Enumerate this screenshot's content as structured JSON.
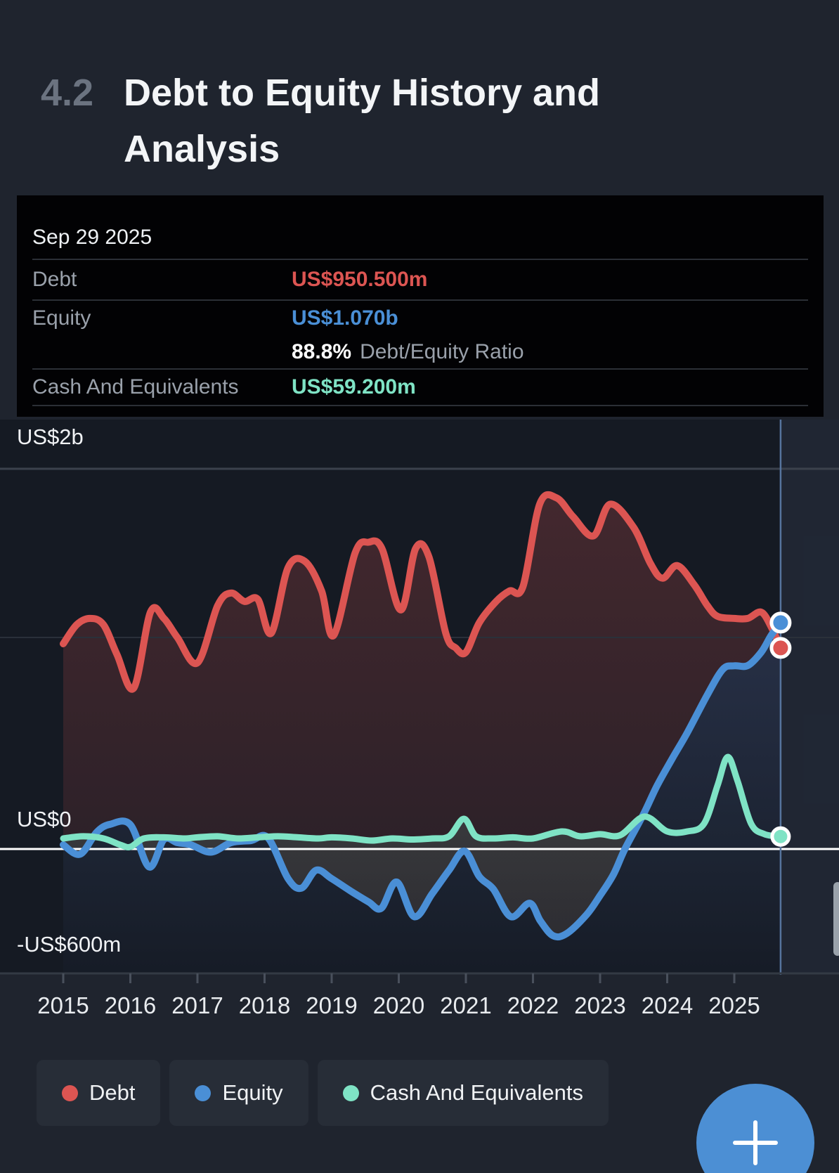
{
  "header": {
    "section_number": "4.2",
    "title": "Debt to Equity History and Analysis"
  },
  "tooltip": {
    "date": "Sep 29 2025",
    "debt": {
      "label": "Debt",
      "value": "US$950.500m"
    },
    "equity": {
      "label": "Equity",
      "value": "US$1.070b"
    },
    "ratio": {
      "value": "88.8%",
      "label": "Debt/Equity Ratio"
    },
    "cash": {
      "label": "Cash And Equivalents",
      "value": "US$59.200m"
    }
  },
  "colors": {
    "debt": "#dc5552",
    "equity": "#4a8fd6",
    "cash": "#7fe3c5",
    "fab_background": "#4c8fd4",
    "crosshair": "#56749e",
    "zero_line": "#ffffff",
    "plot_background": "#151a23",
    "page_background": "#1f242e"
  },
  "legend": {
    "items": [
      {
        "label": "Debt",
        "color": "#dc5552"
      },
      {
        "label": "Equity",
        "color": "#4a8fd6"
      },
      {
        "label": "Cash And Equivalents",
        "color": "#7fe3c5"
      }
    ]
  },
  "fab": {
    "label": "+"
  },
  "chart_data": {
    "type": "line",
    "title": "Debt to Equity History and Analysis",
    "x_labels": [
      "2015",
      "2016",
      "2017",
      "2018",
      "2019",
      "2020",
      "2021",
      "2022",
      "2023",
      "2024",
      "2025"
    ],
    "y_axis": {
      "labels": [
        "US$2b",
        "US$0",
        "-US$600m"
      ],
      "unit": "US$ billions",
      "ylim": [
        -0.6,
        2.0
      ],
      "gridline_values": [
        2,
        1,
        0
      ]
    },
    "x_range_years": [
      2015,
      2025.69
    ],
    "crosshair_year": 2025.69,
    "crosshair_date": "Sep 29 2025",
    "grid_on": true,
    "legend_position": "bottom",
    "series": [
      {
        "name": "Debt",
        "color": "#dc5552",
        "end_value_label": "US$950.500m",
        "points": [
          [
            2015.0,
            0.97
          ],
          [
            2015.2,
            1.06
          ],
          [
            2015.4,
            1.09
          ],
          [
            2015.6,
            1.06
          ],
          [
            2015.8,
            0.92
          ],
          [
            2016.05,
            0.76
          ],
          [
            2016.3,
            1.12
          ],
          [
            2016.5,
            1.09
          ],
          [
            2016.7,
            1.0
          ],
          [
            2017.0,
            0.88
          ],
          [
            2017.3,
            1.15
          ],
          [
            2017.5,
            1.21
          ],
          [
            2017.7,
            1.17
          ],
          [
            2017.9,
            1.18
          ],
          [
            2018.1,
            1.02
          ],
          [
            2018.35,
            1.33
          ],
          [
            2018.6,
            1.36
          ],
          [
            2018.85,
            1.22
          ],
          [
            2019.03,
            1.01
          ],
          [
            2019.35,
            1.4
          ],
          [
            2019.55,
            1.45
          ],
          [
            2019.75,
            1.42
          ],
          [
            2020.03,
            1.13
          ],
          [
            2020.25,
            1.42
          ],
          [
            2020.45,
            1.38
          ],
          [
            2020.7,
            1.02
          ],
          [
            2020.85,
            0.95
          ],
          [
            2021.0,
            0.93
          ],
          [
            2021.2,
            1.07
          ],
          [
            2021.45,
            1.17
          ],
          [
            2021.65,
            1.22
          ],
          [
            2021.85,
            1.24
          ],
          [
            2022.1,
            1.63
          ],
          [
            2022.35,
            1.66
          ],
          [
            2022.6,
            1.57
          ],
          [
            2022.9,
            1.48
          ],
          [
            2023.15,
            1.63
          ],
          [
            2023.5,
            1.52
          ],
          [
            2023.75,
            1.35
          ],
          [
            2023.93,
            1.28
          ],
          [
            2024.15,
            1.34
          ],
          [
            2024.4,
            1.25
          ],
          [
            2024.6,
            1.15
          ],
          [
            2024.75,
            1.1
          ],
          [
            2025.0,
            1.09
          ],
          [
            2025.2,
            1.09
          ],
          [
            2025.4,
            1.12
          ],
          [
            2025.55,
            1.05
          ],
          [
            2025.69,
            0.9505
          ]
        ]
      },
      {
        "name": "Equity",
        "color": "#4a8fd6",
        "end_value_label": "US$1.070b",
        "points": [
          [
            2015.0,
            0.02
          ],
          [
            2015.25,
            -0.025
          ],
          [
            2015.5,
            0.08
          ],
          [
            2015.7,
            0.117
          ],
          [
            2016.0,
            0.115
          ],
          [
            2016.28,
            -0.085
          ],
          [
            2016.5,
            0.045
          ],
          [
            2016.7,
            0.03
          ],
          [
            2016.9,
            0.02
          ],
          [
            2017.2,
            -0.015
          ],
          [
            2017.5,
            0.03
          ],
          [
            2017.8,
            0.04
          ],
          [
            2018.05,
            0.053
          ],
          [
            2018.35,
            -0.14
          ],
          [
            2018.55,
            -0.185
          ],
          [
            2018.77,
            -0.1
          ],
          [
            2019.0,
            -0.14
          ],
          [
            2019.29,
            -0.2
          ],
          [
            2019.55,
            -0.25
          ],
          [
            2019.74,
            -0.28
          ],
          [
            2019.97,
            -0.156
          ],
          [
            2020.23,
            -0.32
          ],
          [
            2020.5,
            -0.21
          ],
          [
            2020.75,
            -0.1
          ],
          [
            2020.98,
            -0.01
          ],
          [
            2021.2,
            -0.13
          ],
          [
            2021.41,
            -0.19
          ],
          [
            2021.67,
            -0.32
          ],
          [
            2021.95,
            -0.256
          ],
          [
            2022.11,
            -0.34
          ],
          [
            2022.3,
            -0.41
          ],
          [
            2022.5,
            -0.4
          ],
          [
            2022.8,
            -0.31
          ],
          [
            2023.0,
            -0.22
          ],
          [
            2023.2,
            -0.12
          ],
          [
            2023.37,
            0.0
          ],
          [
            2023.64,
            0.16
          ],
          [
            2023.85,
            0.3
          ],
          [
            2024.08,
            0.43
          ],
          [
            2024.3,
            0.55
          ],
          [
            2024.6,
            0.73
          ],
          [
            2024.83,
            0.85
          ],
          [
            2025.0,
            0.866
          ],
          [
            2025.2,
            0.867
          ],
          [
            2025.4,
            0.93
          ],
          [
            2025.55,
            1.01
          ],
          [
            2025.69,
            1.07
          ]
        ]
      },
      {
        "name": "Cash And Equivalents",
        "color": "#7fe3c5",
        "end_value_label": "US$59.200m",
        "points": [
          [
            2015.0,
            0.05
          ],
          [
            2015.3,
            0.06
          ],
          [
            2015.6,
            0.05
          ],
          [
            2015.85,
            0.02
          ],
          [
            2016.0,
            0.01
          ],
          [
            2016.2,
            0.05
          ],
          [
            2016.5,
            0.055
          ],
          [
            2016.8,
            0.05
          ],
          [
            2017.0,
            0.055
          ],
          [
            2017.3,
            0.06
          ],
          [
            2017.6,
            0.05
          ],
          [
            2017.9,
            0.055
          ],
          [
            2018.2,
            0.06
          ],
          [
            2018.5,
            0.055
          ],
          [
            2018.8,
            0.05
          ],
          [
            2019.0,
            0.055
          ],
          [
            2019.3,
            0.05
          ],
          [
            2019.6,
            0.04
          ],
          [
            2019.9,
            0.05
          ],
          [
            2020.2,
            0.045
          ],
          [
            2020.5,
            0.05
          ],
          [
            2020.75,
            0.06
          ],
          [
            2020.97,
            0.143
          ],
          [
            2021.15,
            0.06
          ],
          [
            2021.4,
            0.05
          ],
          [
            2021.7,
            0.055
          ],
          [
            2022.0,
            0.05
          ],
          [
            2022.43,
            0.083
          ],
          [
            2022.7,
            0.06
          ],
          [
            2023.0,
            0.07
          ],
          [
            2023.3,
            0.065
          ],
          [
            2023.66,
            0.153
          ],
          [
            2024.0,
            0.083
          ],
          [
            2024.3,
            0.083
          ],
          [
            2024.55,
            0.12
          ],
          [
            2024.75,
            0.3
          ],
          [
            2024.9,
            0.435
          ],
          [
            2025.05,
            0.32
          ],
          [
            2025.25,
            0.12
          ],
          [
            2025.45,
            0.07
          ],
          [
            2025.69,
            0.0592
          ]
        ]
      }
    ],
    "end_markers": {
      "equity": {
        "year": 2025.69,
        "value_b": 1.07
      },
      "debt": {
        "year": 2025.69,
        "value_b": 0.9505
      },
      "cash": {
        "year": 2025.69,
        "value_b": 0.0592
      }
    }
  }
}
